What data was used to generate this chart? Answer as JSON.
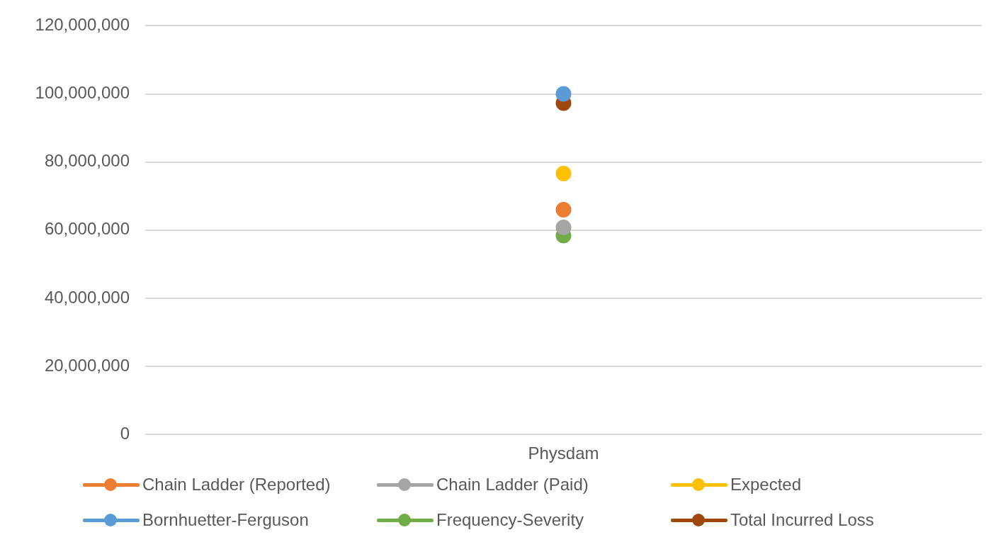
{
  "chart_data": {
    "type": "line",
    "categories": [
      "Physdam"
    ],
    "ylim": [
      0,
      120000000
    ],
    "yticks": [
      0,
      {
        "value": 20000000,
        "label": "20,000,000"
      },
      {
        "value": 40000000,
        "label": "40,000,000"
      },
      {
        "value": 60000000,
        "label": "60,000,000"
      },
      {
        "value": 80000000,
        "label": "80,000,000"
      },
      {
        "value": 100000000,
        "label": "100,000,000"
      },
      {
        "value": 120000000,
        "label": "120,000,000"
      }
    ],
    "grid": "y",
    "legend": "bottom",
    "marker": "circle",
    "series": [
      {
        "name": "Chain Ladder (Reported)",
        "color": "#ed7d31",
        "values": [
          66000000
        ]
      },
      {
        "name": "Chain Ladder (Paid)",
        "color": "#a5a5a5",
        "values": [
          60800000
        ]
      },
      {
        "name": "Expected",
        "color": "#ffc000",
        "values": [
          76600000
        ]
      },
      {
        "name": "Bornhuetter-Ferguson",
        "color": "#5b9bd5",
        "values": [
          100000000
        ]
      },
      {
        "name": "Frequency-Severity",
        "color": "#70ad47",
        "values": [
          58400000
        ]
      },
      {
        "name": "Total Incurred Loss",
        "color": "#9e480e",
        "values": [
          97300000
        ]
      }
    ]
  }
}
